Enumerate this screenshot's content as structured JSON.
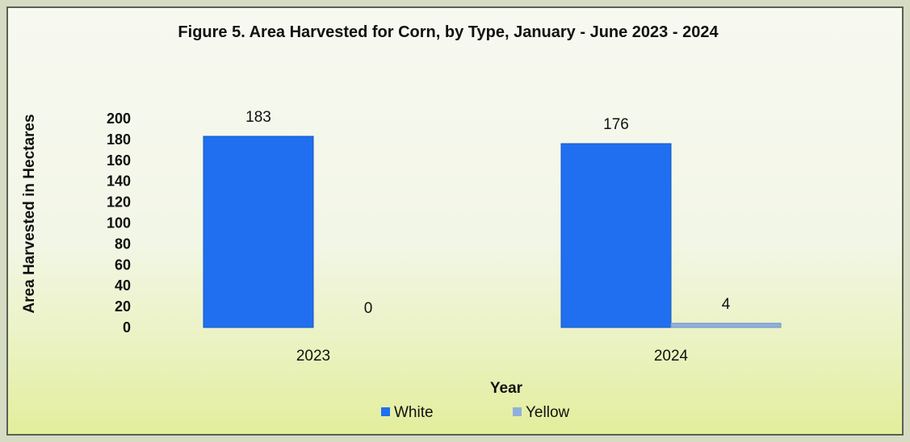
{
  "chart_data": {
    "type": "bar",
    "title": "Figure 5. Area Harvested for Corn, by Type, January - June 2023 - 2024",
    "xlabel": "Year",
    "ylabel": "Area Harvested in Hectares",
    "categories": [
      "2023",
      "2024"
    ],
    "series": [
      {
        "name": "White",
        "values": [
          183,
          176
        ],
        "color": "#1f6ff0"
      },
      {
        "name": "Yellow",
        "values": [
          0,
          4
        ],
        "color": "#8fb0dd"
      }
    ],
    "data_labels": [
      [
        "183",
        "176"
      ],
      [
        "0",
        "4"
      ]
    ],
    "ylim": [
      0,
      200
    ],
    "yticks": [
      0,
      20,
      40,
      60,
      80,
      100,
      120,
      140,
      160,
      180,
      200
    ],
    "grid": false,
    "legend_position": "bottom"
  }
}
